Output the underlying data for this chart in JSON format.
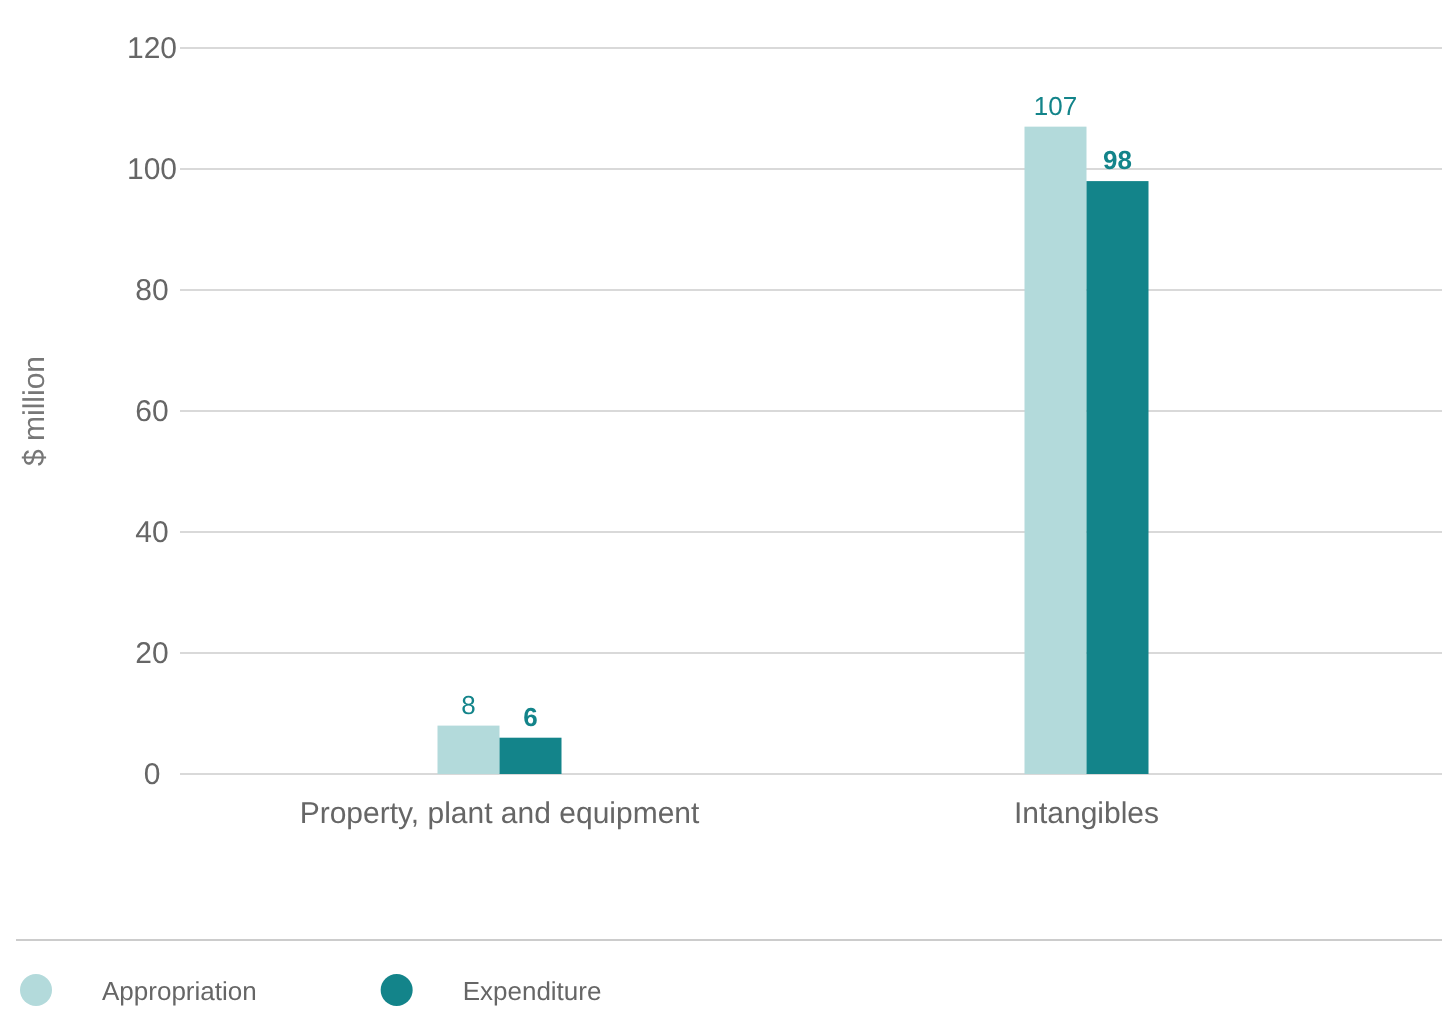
{
  "chart_data": {
    "type": "bar",
    "ylabel": "$ million",
    "categories": [
      "Property, plant and equipment",
      "Intangibles"
    ],
    "series": [
      {
        "name": "Appropriation",
        "color": "#b3dadb",
        "values": [
          8,
          107
        ]
      },
      {
        "name": "Expenditure",
        "color": "#13848a",
        "values": [
          6,
          98
        ]
      }
    ],
    "ylim": [
      0,
      120
    ],
    "yticks": [
      0,
      20,
      40,
      60,
      80,
      100,
      120
    ],
    "grid": "y",
    "data_labels": true,
    "legend": "bottom"
  }
}
